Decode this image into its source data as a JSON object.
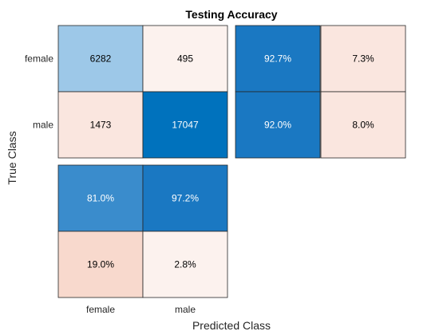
{
  "chart_data": {
    "type": "heatmap",
    "title": "Testing Accuracy",
    "xlabel": "Predicted Class",
    "ylabel": "True Class",
    "classes": [
      "female",
      "male"
    ],
    "matrix": [
      [
        6282,
        495
      ],
      [
        1473,
        17047
      ]
    ],
    "row_summary": [
      [
        "92.7%",
        "7.3%"
      ],
      [
        "92.0%",
        "8.0%"
      ]
    ],
    "column_summary": [
      [
        "81.0%",
        "97.2%"
      ],
      [
        "19.0%",
        "2.8%"
      ]
    ],
    "matrix_display": [
      [
        "6282",
        "495"
      ],
      [
        "1473",
        "17047"
      ]
    ]
  },
  "colors": {
    "dark_blue": "#0072bd",
    "blue": "#1a78c2",
    "mid_blue": "#3a8ccc",
    "light_blue": "#9dc8e8",
    "pale_pink": "#fcf2ee",
    "light_pink": "#fae6df",
    "pink": "#f8d9cd"
  }
}
